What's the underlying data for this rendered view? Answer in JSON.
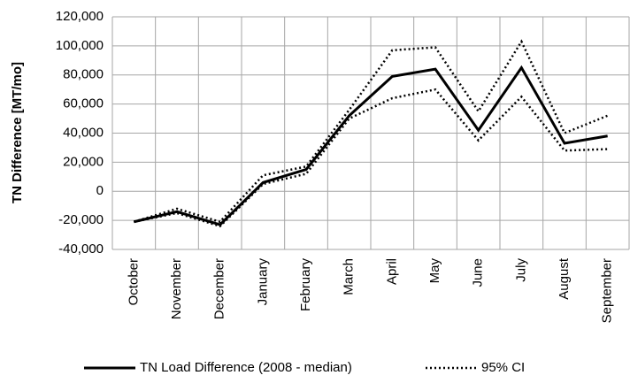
{
  "chart_data": {
    "type": "line",
    "y_label": "TN Difference [MT/mo]",
    "categories": [
      "October",
      "November",
      "December",
      "January",
      "February",
      "March",
      "April",
      "May",
      "June",
      "July",
      "August",
      "September"
    ],
    "series": [
      {
        "name": "TN Load Difference (2008 - median)",
        "color": "#000000",
        "style": "solid",
        "values": [
          -21000,
          -14000,
          -23000,
          6000,
          15000,
          52000,
          79000,
          84000,
          42000,
          85000,
          33000,
          38000
        ]
      },
      {
        "name": "95% CI",
        "color": "#000000",
        "style": "dotted",
        "values": [
          -21000,
          -12000,
          -21000,
          11000,
          17000,
          56000,
          97000,
          99000,
          55000,
          103000,
          40000,
          52000
        ],
        "lower": [
          -21000,
          -15000,
          -24000,
          5000,
          12000,
          50000,
          64000,
          70000,
          35000,
          65000,
          28000,
          29000
        ]
      }
    ],
    "ylim": [
      -40000,
      120000
    ],
    "yticks": [
      {
        "value": -40000,
        "label": "-40,000"
      },
      {
        "value": -20000,
        "label": "-20,000"
      },
      0,
      {
        "value": 20000,
        "label": "20,000"
      },
      {
        "value": 40000,
        "label": "40,000"
      },
      {
        "value": 60000,
        "label": "60,000"
      },
      {
        "value": 80000,
        "label": "80,000"
      },
      {
        "value": 100000,
        "label": "100,000"
      },
      {
        "value": 120000,
        "label": "120,000"
      }
    ],
    "grid": true
  }
}
